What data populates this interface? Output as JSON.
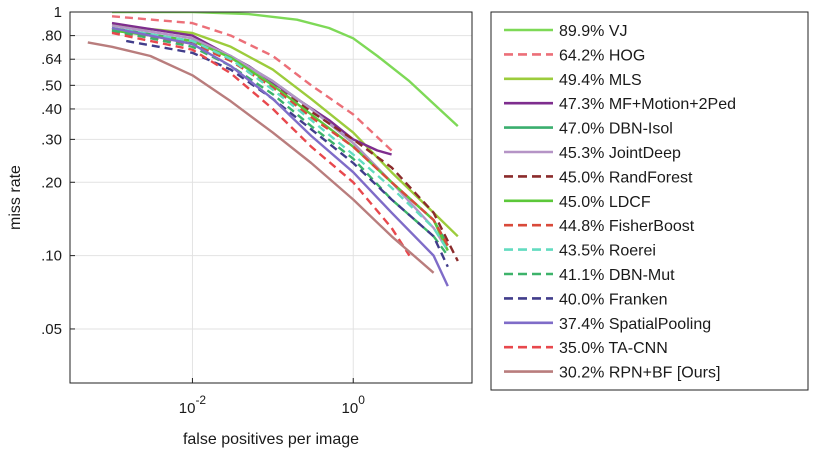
{
  "chart_data": {
    "type": "line",
    "title": "",
    "xlabel": "false positives per image",
    "ylabel": "miss rate",
    "x_scale": "log",
    "y_scale": "log",
    "xlim": [
      0.0003,
      30
    ],
    "ylim": [
      0.03,
      1
    ],
    "x_ticks": [
      {
        "value": 0.01,
        "base": "10",
        "exp": "-2"
      },
      {
        "value": 1,
        "base": "10",
        "exp": "0"
      }
    ],
    "y_ticks": [
      {
        "value": 1.0,
        "label": "1"
      },
      {
        "value": 0.8,
        "label": ".80"
      },
      {
        "value": 0.64,
        "label": ".64"
      },
      {
        "value": 0.5,
        "label": ".50"
      },
      {
        "value": 0.4,
        "label": ".40"
      },
      {
        "value": 0.3,
        "label": ".30"
      },
      {
        "value": 0.2,
        "label": ".20"
      },
      {
        "value": 0.1,
        "label": ".10"
      },
      {
        "value": 0.05,
        "label": ".05"
      }
    ],
    "grid": true,
    "legend_position": "right",
    "series": [
      {
        "name": "89.9% VJ",
        "color": "#7ed957",
        "dash": "solid",
        "points": [
          [
            0.001,
            1.0
          ],
          [
            0.01,
            1.0
          ],
          [
            0.05,
            0.98
          ],
          [
            0.2,
            0.93
          ],
          [
            0.5,
            0.86
          ],
          [
            1,
            0.78
          ],
          [
            2,
            0.66
          ],
          [
            5,
            0.52
          ],
          [
            10,
            0.42
          ],
          [
            20,
            0.34
          ]
        ]
      },
      {
        "name": "64.2% HOG",
        "color": "#ec6f78",
        "dash": "dashed",
        "points": [
          [
            0.001,
            0.96
          ],
          [
            0.01,
            0.9
          ],
          [
            0.03,
            0.8
          ],
          [
            0.1,
            0.66
          ],
          [
            0.3,
            0.5
          ],
          [
            1,
            0.38
          ],
          [
            3,
            0.27
          ]
        ]
      },
      {
        "name": "49.4% MLS",
        "color": "#9ccc3c",
        "dash": "solid",
        "points": [
          [
            0.001,
            0.88
          ],
          [
            0.01,
            0.82
          ],
          [
            0.03,
            0.72
          ],
          [
            0.1,
            0.58
          ],
          [
            0.3,
            0.44
          ],
          [
            1,
            0.32
          ],
          [
            3,
            0.22
          ],
          [
            10,
            0.15
          ],
          [
            20,
            0.12
          ]
        ]
      },
      {
        "name": "47.3% MF+Motion+2Ped",
        "color": "#7e2d8e",
        "dash": "solid",
        "points": [
          [
            0.001,
            0.9
          ],
          [
            0.01,
            0.8
          ],
          [
            0.05,
            0.6
          ],
          [
            0.2,
            0.44
          ],
          [
            0.5,
            0.36
          ],
          [
            1,
            0.3
          ],
          [
            2,
            0.27
          ],
          [
            3,
            0.26
          ]
        ]
      },
      {
        "name": "47.0% DBN-Isol",
        "color": "#3aae6e",
        "dash": "solid",
        "points": [
          [
            0.001,
            0.86
          ],
          [
            0.01,
            0.76
          ],
          [
            0.03,
            0.66
          ],
          [
            0.1,
            0.52
          ],
          [
            0.3,
            0.4
          ],
          [
            1,
            0.29
          ],
          [
            3,
            0.2
          ],
          [
            10,
            0.14
          ],
          [
            15,
            0.11
          ]
        ]
      },
      {
        "name": "45.3% JointDeep",
        "color": "#b594c6",
        "dash": "solid",
        "points": [
          [
            0.001,
            0.88
          ],
          [
            0.01,
            0.78
          ],
          [
            0.03,
            0.66
          ],
          [
            0.1,
            0.52
          ],
          [
            0.3,
            0.4
          ],
          [
            1,
            0.29
          ],
          [
            3,
            0.2
          ],
          [
            10,
            0.13
          ],
          [
            15,
            0.105
          ]
        ]
      },
      {
        "name": "45.0% RandForest",
        "color": "#8b2b2b",
        "dash": "dashed",
        "points": [
          [
            0.001,
            0.85
          ],
          [
            0.01,
            0.75
          ],
          [
            0.03,
            0.64
          ],
          [
            0.1,
            0.5
          ],
          [
            0.3,
            0.39
          ],
          [
            1,
            0.3
          ],
          [
            3,
            0.23
          ],
          [
            10,
            0.15
          ],
          [
            20,
            0.095
          ]
        ]
      },
      {
        "name": "45.0% LDCF",
        "color": "#5cc83a",
        "dash": "solid",
        "points": [
          [
            0.001,
            0.84
          ],
          [
            0.01,
            0.76
          ],
          [
            0.03,
            0.65
          ],
          [
            0.1,
            0.5
          ],
          [
            0.3,
            0.38
          ],
          [
            1,
            0.28
          ],
          [
            3,
            0.2
          ],
          [
            10,
            0.14
          ],
          [
            15,
            0.105
          ]
        ]
      },
      {
        "name": "44.8% FisherBoost",
        "color": "#d94a3a",
        "dash": "dashed",
        "points": [
          [
            0.001,
            0.83
          ],
          [
            0.01,
            0.74
          ],
          [
            0.03,
            0.63
          ],
          [
            0.1,
            0.49
          ],
          [
            0.3,
            0.37
          ],
          [
            1,
            0.28
          ],
          [
            3,
            0.2
          ],
          [
            10,
            0.14
          ],
          [
            15,
            0.11
          ]
        ]
      },
      {
        "name": "43.5% Roerei",
        "color": "#63dcc0",
        "dash": "dashed",
        "points": [
          [
            0.001,
            0.86
          ],
          [
            0.01,
            0.76
          ],
          [
            0.03,
            0.64
          ],
          [
            0.1,
            0.48
          ],
          [
            0.3,
            0.36
          ],
          [
            1,
            0.26
          ],
          [
            3,
            0.19
          ],
          [
            10,
            0.13
          ],
          [
            15,
            0.105
          ]
        ]
      },
      {
        "name": "41.1% DBN-Mut",
        "color": "#3db36a",
        "dash": "dashed",
        "points": [
          [
            0.001,
            0.84
          ],
          [
            0.01,
            0.72
          ],
          [
            0.03,
            0.6
          ],
          [
            0.1,
            0.46
          ],
          [
            0.3,
            0.34
          ],
          [
            1,
            0.25
          ],
          [
            3,
            0.17
          ],
          [
            10,
            0.12
          ],
          [
            15,
            0.1
          ]
        ]
      },
      {
        "name": "40.0% Franken",
        "color": "#413d8b",
        "dash": "dashed",
        "points": [
          [
            0.0015,
            0.76
          ],
          [
            0.01,
            0.68
          ],
          [
            0.03,
            0.58
          ],
          [
            0.1,
            0.44
          ],
          [
            0.3,
            0.33
          ],
          [
            1,
            0.24
          ],
          [
            3,
            0.17
          ],
          [
            10,
            0.12
          ],
          [
            15,
            0.09
          ]
        ]
      },
      {
        "name": "37.4% SpatialPooling",
        "color": "#7f6cc8",
        "dash": "solid",
        "points": [
          [
            0.001,
            0.86
          ],
          [
            0.01,
            0.74
          ],
          [
            0.03,
            0.6
          ],
          [
            0.1,
            0.44
          ],
          [
            0.3,
            0.31
          ],
          [
            1,
            0.22
          ],
          [
            3,
            0.15
          ],
          [
            10,
            0.1
          ],
          [
            15,
            0.075
          ]
        ]
      },
      {
        "name": "35.0% TA-CNN",
        "color": "#e8484d",
        "dash": "dashed",
        "points": [
          [
            0.001,
            0.82
          ],
          [
            0.01,
            0.7
          ],
          [
            0.03,
            0.56
          ],
          [
            0.1,
            0.4
          ],
          [
            0.3,
            0.28
          ],
          [
            1,
            0.2
          ],
          [
            3,
            0.13
          ],
          [
            5,
            0.1
          ]
        ]
      },
      {
        "name": "30.2% RPN+BF [Ours]",
        "color": "#b97d7d",
        "dash": "solid",
        "points": [
          [
            0.0005,
            0.75
          ],
          [
            0.001,
            0.72
          ],
          [
            0.003,
            0.66
          ],
          [
            0.01,
            0.55
          ],
          [
            0.03,
            0.43
          ],
          [
            0.1,
            0.32
          ],
          [
            0.3,
            0.24
          ],
          [
            1,
            0.17
          ],
          [
            3,
            0.12
          ],
          [
            10,
            0.085
          ]
        ]
      }
    ]
  }
}
